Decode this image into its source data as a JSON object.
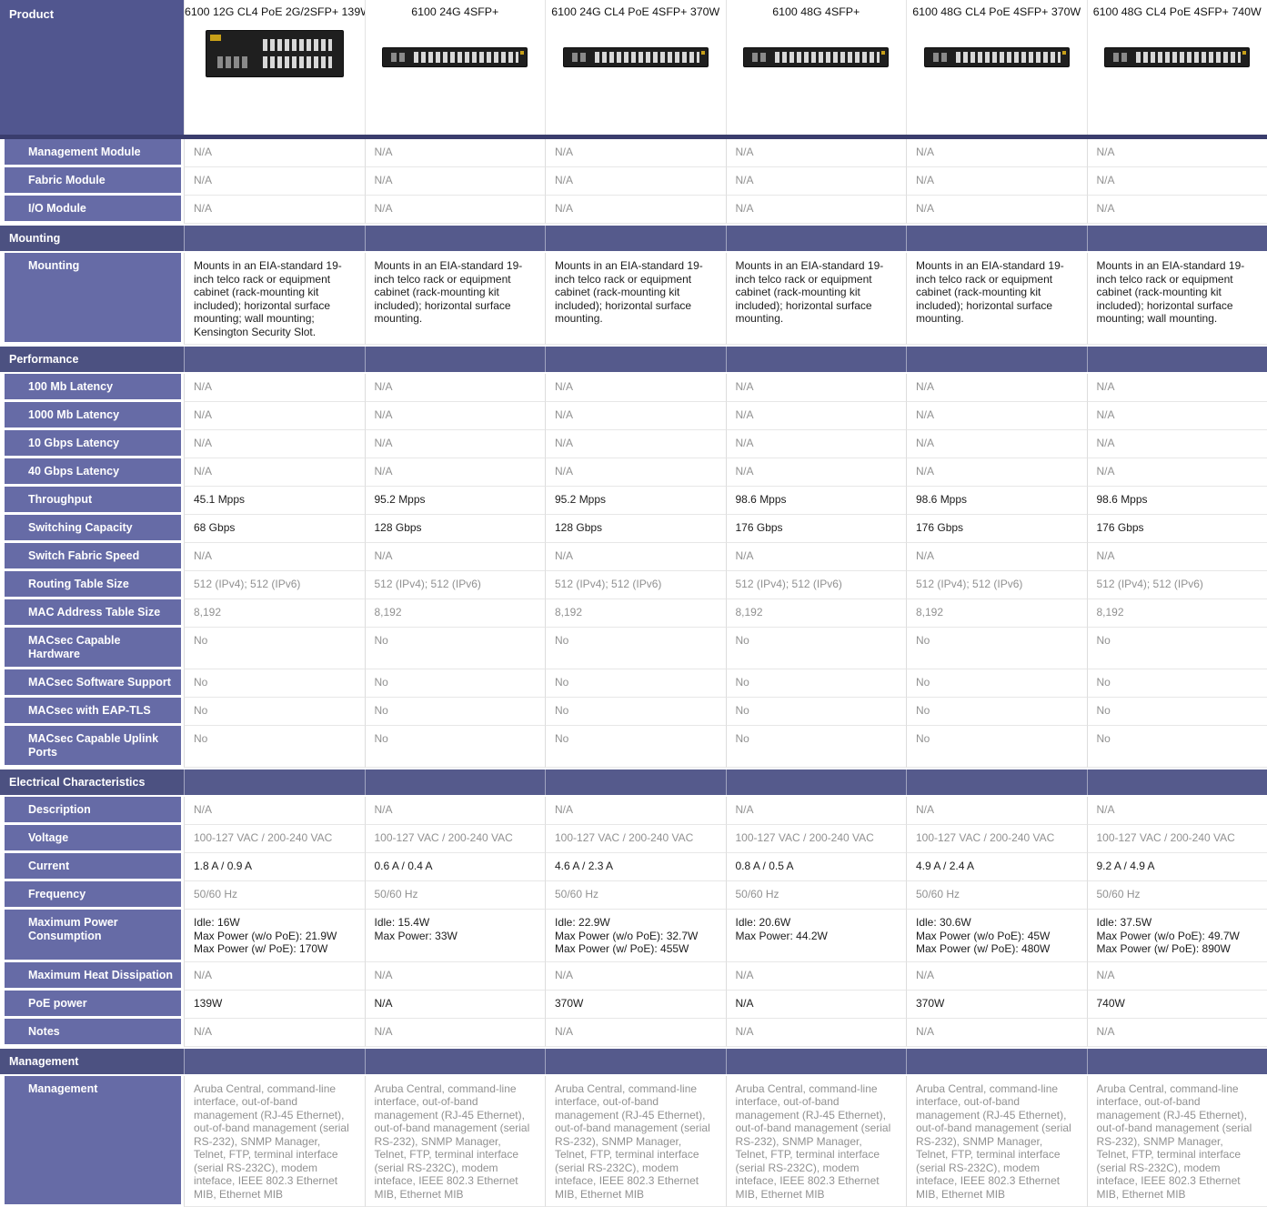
{
  "colors": {
    "section_header": "#4c5181",
    "section_band": "#555a8c",
    "row_label": "#666ba6",
    "product_header": "#51568f",
    "divider_line": "#3a3d6d",
    "muted_text": "#919191",
    "value_text": "#1c1c1c"
  },
  "header": {
    "label": "Product",
    "products": [
      {
        "name": "6100 12G CL4 PoE 2G/2SFP+ 139W",
        "image": "switch-front-panel-compact"
      },
      {
        "name": "6100 24G 4SFP+",
        "image": "switch-front-panel-slim"
      },
      {
        "name": "6100 24G CL4 PoE 4SFP+ 370W",
        "image": "switch-front-panel-slim"
      },
      {
        "name": "6100 48G 4SFP+",
        "image": "switch-front-panel-slim"
      },
      {
        "name": "6100 48G CL4 PoE 4SFP+ 370W",
        "image": "switch-front-panel-slim"
      },
      {
        "name": "6100 48G CL4 PoE 4SFP+ 740W",
        "image": "switch-front-panel-slim"
      }
    ]
  },
  "rows": [
    {
      "type": "data",
      "label": "Management Module",
      "muted": true,
      "values": [
        "N/A",
        "N/A",
        "N/A",
        "N/A",
        "N/A",
        "N/A"
      ]
    },
    {
      "type": "data",
      "label": "Fabric Module",
      "muted": true,
      "values": [
        "N/A",
        "N/A",
        "N/A",
        "N/A",
        "N/A",
        "N/A"
      ]
    },
    {
      "type": "data",
      "label": "I/O Module",
      "muted": true,
      "values": [
        "N/A",
        "N/A",
        "N/A",
        "N/A",
        "N/A",
        "N/A"
      ]
    },
    {
      "type": "section",
      "label": "Mounting"
    },
    {
      "type": "data",
      "label": "Mounting",
      "muted": false,
      "values": [
        "Mounts in an EIA-standard 19-inch telco rack or equipment cabinet (rack-mounting kit included); horizontal surface mounting; wall mounting; Kensington Security Slot.",
        "Mounts in an EIA-standard 19-inch telco rack or equipment cabinet (rack-mounting kit included); horizontal surface mounting.",
        "Mounts in an EIA-standard 19-inch telco rack or equipment cabinet (rack-mounting kit included); horizontal surface mounting.",
        "Mounts in an EIA-standard 19-inch telco rack or equipment cabinet (rack-mounting kit included); horizontal surface mounting.",
        "Mounts in an EIA-standard 19-inch telco rack or equipment cabinet (rack-mounting kit included); horizontal surface mounting.",
        "Mounts in an EIA-standard 19-inch telco rack or equipment cabinet (rack-mounting kit included); horizontal surface mounting; wall mounting."
      ]
    },
    {
      "type": "section",
      "label": "Performance"
    },
    {
      "type": "data",
      "label": "100 Mb Latency",
      "muted": true,
      "values": [
        "N/A",
        "N/A",
        "N/A",
        "N/A",
        "N/A",
        "N/A"
      ]
    },
    {
      "type": "data",
      "label": "1000 Mb Latency",
      "muted": true,
      "values": [
        "N/A",
        "N/A",
        "N/A",
        "N/A",
        "N/A",
        "N/A"
      ]
    },
    {
      "type": "data",
      "label": "10 Gbps Latency",
      "muted": true,
      "values": [
        "N/A",
        "N/A",
        "N/A",
        "N/A",
        "N/A",
        "N/A"
      ]
    },
    {
      "type": "data",
      "label": "40 Gbps Latency",
      "muted": true,
      "values": [
        "N/A",
        "N/A",
        "N/A",
        "N/A",
        "N/A",
        "N/A"
      ]
    },
    {
      "type": "data",
      "label": "Throughput",
      "muted": false,
      "values": [
        "45.1 Mpps",
        "95.2 Mpps",
        "95.2 Mpps",
        "98.6 Mpps",
        "98.6 Mpps",
        "98.6 Mpps"
      ]
    },
    {
      "type": "data",
      "label": "Switching Capacity",
      "muted": false,
      "values": [
        "68 Gbps",
        "128 Gbps",
        "128 Gbps",
        "176 Gbps",
        "176 Gbps",
        "176 Gbps"
      ]
    },
    {
      "type": "data",
      "label": "Switch Fabric Speed",
      "muted": true,
      "values": [
        "N/A",
        "N/A",
        "N/A",
        "N/A",
        "N/A",
        "N/A"
      ]
    },
    {
      "type": "data",
      "label": "Routing Table Size",
      "muted": true,
      "values": [
        "512 (IPv4); 512 (IPv6)",
        "512 (IPv4); 512 (IPv6)",
        "512 (IPv4); 512 (IPv6)",
        "512 (IPv4); 512 (IPv6)",
        "512 (IPv4); 512 (IPv6)",
        "512 (IPv4); 512 (IPv6)"
      ]
    },
    {
      "type": "data",
      "label": "MAC Address Table Size",
      "muted": true,
      "values": [
        "8,192",
        "8,192",
        "8,192",
        "8,192",
        "8,192",
        "8,192"
      ]
    },
    {
      "type": "data",
      "label": "MACsec Capable Hardware",
      "muted": true,
      "values": [
        "No",
        "No",
        "No",
        "No",
        "No",
        "No"
      ]
    },
    {
      "type": "data",
      "label": "MACsec Software Support",
      "muted": true,
      "values": [
        "No",
        "No",
        "No",
        "No",
        "No",
        "No"
      ]
    },
    {
      "type": "data",
      "label": "MACsec with EAP-TLS",
      "muted": true,
      "values": [
        "No",
        "No",
        "No",
        "No",
        "No",
        "No"
      ]
    },
    {
      "type": "data",
      "label": "MACsec Capable Uplink Ports",
      "muted": true,
      "values": [
        "No",
        "No",
        "No",
        "No",
        "No",
        "No"
      ]
    },
    {
      "type": "section",
      "label": "Electrical Characteristics"
    },
    {
      "type": "data",
      "label": "Description",
      "muted": true,
      "values": [
        "N/A",
        "N/A",
        "N/A",
        "N/A",
        "N/A",
        "N/A"
      ]
    },
    {
      "type": "data",
      "label": "Voltage",
      "muted": true,
      "values": [
        "100-127 VAC / 200-240 VAC",
        "100-127 VAC / 200-240 VAC",
        "100-127 VAC / 200-240 VAC",
        "100-127 VAC / 200-240 VAC",
        "100-127 VAC / 200-240 VAC",
        "100-127 VAC / 200-240 VAC"
      ]
    },
    {
      "type": "data",
      "label": "Current",
      "muted": false,
      "values": [
        "1.8 A / 0.9 A",
        "0.6 A / 0.4 A",
        "4.6 A / 2.3 A",
        "0.8 A / 0.5 A",
        "4.9 A / 2.4 A",
        "9.2 A / 4.9 A"
      ]
    },
    {
      "type": "data",
      "label": "Frequency",
      "muted": true,
      "values": [
        "50/60 Hz",
        "50/60 Hz",
        "50/60 Hz",
        "50/60 Hz",
        "50/60 Hz",
        "50/60 Hz"
      ]
    },
    {
      "type": "data",
      "label": "Maximum Power Consumption",
      "muted": false,
      "values": [
        "Idle: 16W\nMax Power (w/o PoE): 21.9W\nMax Power (w/ PoE): 170W",
        "Idle: 15.4W\nMax Power: 33W",
        "Idle: 22.9W\nMax Power (w/o PoE): 32.7W\nMax Power (w/ PoE): 455W",
        "Idle: 20.6W\nMax Power: 44.2W",
        "Idle: 30.6W\nMax Power (w/o PoE): 45W\nMax Power (w/ PoE): 480W",
        "Idle: 37.5W\nMax Power (w/o PoE): 49.7W\nMax Power (w/ PoE): 890W"
      ]
    },
    {
      "type": "data",
      "label": "Maximum Heat Dissipation",
      "muted": true,
      "values": [
        "N/A",
        "N/A",
        "N/A",
        "N/A",
        "N/A",
        "N/A"
      ]
    },
    {
      "type": "data",
      "label": "PoE power",
      "muted": false,
      "values": [
        "139W",
        "N/A",
        "370W",
        "N/A",
        "370W",
        "740W"
      ]
    },
    {
      "type": "data",
      "label": "Notes",
      "muted": true,
      "values": [
        "N/A",
        "N/A",
        "N/A",
        "N/A",
        "N/A",
        "N/A"
      ]
    },
    {
      "type": "section",
      "label": "Management"
    },
    {
      "type": "data",
      "label": "Management",
      "muted": true,
      "values": [
        "Aruba Central, command-line interface, out-of-band management (RJ-45 Ethernet), out-of-band management (serial RS-232), SNMP Manager, Telnet, FTP, terminal interface (serial RS-232C), modem inteface, IEEE 802.3 Ethernet MIB, Ethernet MIB",
        "Aruba Central, command-line interface, out-of-band management (RJ-45 Ethernet), out-of-band management (serial RS-232), SNMP Manager, Telnet, FTP, terminal interface (serial RS-232C), modem inteface, IEEE 802.3 Ethernet MIB, Ethernet MIB",
        "Aruba Central, command-line interface, out-of-band management (RJ-45 Ethernet), out-of-band management (serial RS-232), SNMP Manager, Telnet, FTP, terminal interface (serial RS-232C), modem inteface, IEEE 802.3 Ethernet MIB, Ethernet MIB",
        "Aruba Central, command-line interface, out-of-band management (RJ-45 Ethernet), out-of-band management (serial RS-232), SNMP Manager, Telnet, FTP, terminal interface (serial RS-232C), modem inteface, IEEE 802.3 Ethernet MIB, Ethernet MIB",
        "Aruba Central, command-line interface, out-of-band management (RJ-45 Ethernet), out-of-band management (serial RS-232), SNMP Manager, Telnet, FTP, terminal interface (serial RS-232C), modem inteface, IEEE 802.3 Ethernet MIB, Ethernet MIB",
        "Aruba Central, command-line interface, out-of-band management (RJ-45 Ethernet), out-of-band management (serial RS-232), SNMP Manager, Telnet, FTP, terminal interface (serial RS-232C), modem inteface, IEEE 802.3 Ethernet MIB, Ethernet MIB"
      ]
    }
  ]
}
